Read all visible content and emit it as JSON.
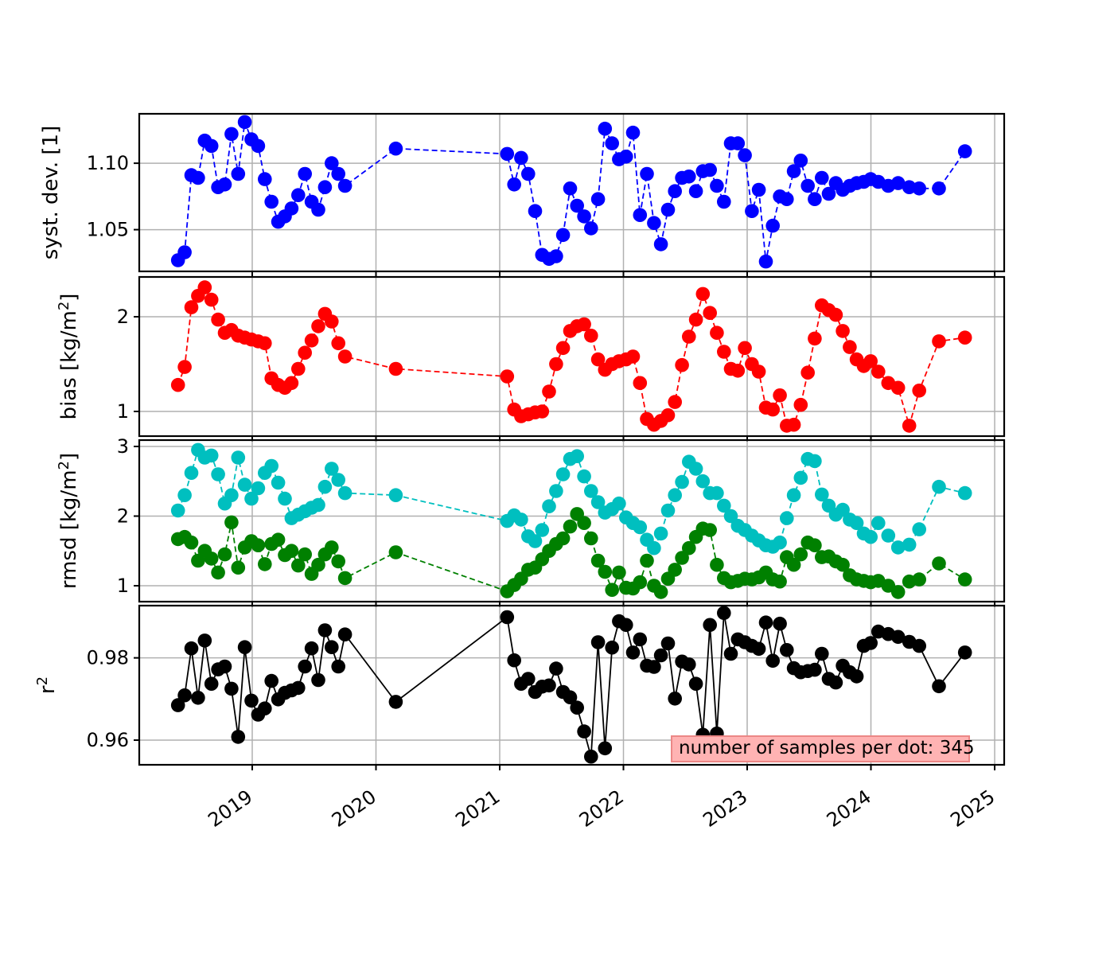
{
  "annotation_box": {
    "text": "number of samples per dot: 345",
    "fill": "#ffb3b3",
    "border_color": "#ec8786"
  },
  "chart_data": {
    "type": "line",
    "description": "Four stacked time-series panels of validation statistics (syst. dev., bias, rmsd, r2) with large dots connected by dashed/solid lines, monthly-to-3-weekly cadence 2018-2024 with a data gap between early 2020 and early 2021",
    "grid": true,
    "x_axis": {
      "range": [
        2018.087,
        2025.077
      ],
      "ticks": [
        2019,
        2020,
        2021,
        2022,
        2023,
        2024,
        2025
      ],
      "tick_labels": [
        "2019",
        "2020",
        "2021",
        "2022",
        "2023",
        "2024",
        "2025"
      ]
    },
    "x": [
      2018.4,
      2018.454,
      2018.508,
      2018.562,
      2018.616,
      2018.67,
      2018.724,
      2018.778,
      2018.832,
      2018.886,
      2018.94,
      2018.994,
      2019.048,
      2019.102,
      2019.156,
      2019.21,
      2019.264,
      2019.318,
      2019.372,
      2019.426,
      2019.48,
      2019.534,
      2019.588,
      2019.642,
      2019.696,
      2019.75,
      2020.16,
      2021.06,
      2021.117,
      2021.173,
      2021.23,
      2021.286,
      2021.343,
      2021.399,
      2021.456,
      2021.512,
      2021.569,
      2021.625,
      2021.682,
      2021.738,
      2021.795,
      2021.851,
      2021.908,
      2021.964,
      2022.021,
      2022.077,
      2022.134,
      2022.19,
      2022.247,
      2022.303,
      2022.36,
      2022.416,
      2022.473,
      2022.529,
      2022.586,
      2022.642,
      2022.699,
      2022.755,
      2022.812,
      2022.868,
      2022.925,
      2022.981,
      2023.038,
      2023.094,
      2023.151,
      2023.207,
      2023.264,
      2023.32,
      2023.377,
      2023.433,
      2023.49,
      2023.546,
      2023.603,
      2023.659,
      2023.716,
      2023.772,
      2023.829,
      2023.885,
      2023.942,
      2023.998,
      2024.06,
      2024.14,
      2024.22,
      2024.31,
      2024.39,
      2024.55,
      2024.76
    ],
    "panels": [
      {
        "id": "syst-dev",
        "ylabel_parts": [
          {
            "text": "syst. dev. [1]",
            "sup": false
          }
        ],
        "ylim": [
          1.0186,
          1.1372
        ],
        "yticks": [
          {
            "value": 1.05,
            "label": "1.05"
          },
          {
            "value": 1.1,
            "label": "1.10"
          }
        ],
        "series": [
          {
            "name": "syst-dev",
            "color": "#0000ff",
            "dashed": true,
            "values": [
              1.027,
              1.033,
              1.091,
              1.089,
              1.117,
              1.113,
              1.082,
              1.084,
              1.122,
              1.092,
              1.131,
              1.118,
              1.113,
              1.088,
              1.071,
              1.056,
              1.06,
              1.066,
              1.076,
              1.092,
              1.071,
              1.065,
              1.082,
              1.1,
              1.092,
              1.083,
              1.111,
              1.107,
              1.084,
              1.104,
              1.092,
              1.064,
              1.031,
              1.028,
              1.03,
              1.046,
              1.081,
              1.068,
              1.06,
              1.051,
              1.073,
              1.126,
              1.115,
              1.103,
              1.105,
              1.123,
              1.061,
              1.092,
              1.055,
              1.039,
              1.065,
              1.079,
              1.089,
              1.09,
              1.079,
              1.094,
              1.095,
              1.083,
              1.071,
              1.115,
              1.115,
              1.106,
              1.064,
              1.08,
              1.026,
              1.053,
              1.075,
              1.073,
              1.094,
              1.102,
              1.083,
              1.073,
              1.089,
              1.077,
              1.085,
              1.08,
              1.083,
              1.085,
              1.086,
              1.088,
              1.086,
              1.083,
              1.085,
              1.082,
              1.081,
              1.081,
              1.109
            ]
          }
        ]
      },
      {
        "id": "bias",
        "ylabel_parts": [
          {
            "text": "bias [kg/m",
            "sup": false
          },
          {
            "text": "2",
            "sup": true
          },
          {
            "text": "]",
            "sup": false
          }
        ],
        "ylim": [
          0.7395,
          2.4202
        ],
        "yticks": [
          {
            "value": 1,
            "label": "1"
          },
          {
            "value": 2,
            "label": "2"
          }
        ],
        "series": [
          {
            "name": "bias",
            "color": "#ff0000",
            "dashed": true,
            "values": [
              1.28,
              1.47,
              2.1,
              2.22,
              2.31,
              2.18,
              1.97,
              1.83,
              1.86,
              1.8,
              1.78,
              1.76,
              1.74,
              1.72,
              1.35,
              1.28,
              1.25,
              1.3,
              1.45,
              1.62,
              1.75,
              1.9,
              2.03,
              1.95,
              1.72,
              1.58,
              1.45,
              1.37,
              1.02,
              0.95,
              0.97,
              0.99,
              1.0,
              1.21,
              1.5,
              1.67,
              1.85,
              1.9,
              1.92,
              1.8,
              1.55,
              1.44,
              1.5,
              1.53,
              1.55,
              1.58,
              1.3,
              0.92,
              0.86,
              0.9,
              0.96,
              1.1,
              1.49,
              1.79,
              1.97,
              2.24,
              2.04,
              1.83,
              1.63,
              1.45,
              1.43,
              1.67,
              1.5,
              1.42,
              1.04,
              1.02,
              1.17,
              0.85,
              0.86,
              1.07,
              1.41,
              1.77,
              2.12,
              2.07,
              2.02,
              1.85,
              1.68,
              1.55,
              1.48,
              1.53,
              1.42,
              1.3,
              1.25,
              0.85,
              1.22,
              1.74,
              1.78
            ]
          }
        ]
      },
      {
        "id": "rmsd",
        "ylabel_parts": [
          {
            "text": "rmsd [kg/m",
            "sup": false
          },
          {
            "text": "2",
            "sup": true
          },
          {
            "text": "]",
            "sup": false
          }
        ],
        "ylim": [
          0.7714,
          3.0914
        ],
        "yticks": [
          {
            "value": 1,
            "label": "1"
          },
          {
            "value": 2,
            "label": "2"
          },
          {
            "value": 3,
            "label": "3"
          }
        ],
        "series": [
          {
            "name": "rmsd-cyan",
            "color": "#00bfbf",
            "dashed": true,
            "values": [
              2.08,
              2.3,
              2.62,
              2.95,
              2.84,
              2.87,
              2.6,
              2.18,
              2.3,
              2.84,
              2.45,
              2.25,
              2.4,
              2.62,
              2.72,
              2.48,
              2.25,
              1.97,
              2.02,
              2.07,
              2.12,
              2.16,
              2.42,
              2.68,
              2.52,
              2.33,
              2.3,
              1.93,
              2.01,
              1.95,
              1.71,
              1.64,
              1.8,
              2.14,
              2.36,
              2.6,
              2.82,
              2.86,
              2.57,
              2.36,
              2.2,
              2.05,
              2.1,
              2.18,
              1.98,
              1.9,
              1.84,
              1.66,
              1.54,
              1.75,
              2.08,
              2.3,
              2.49,
              2.78,
              2.68,
              2.5,
              2.33,
              2.33,
              2.15,
              2.0,
              1.86,
              1.8,
              1.72,
              1.65,
              1.58,
              1.56,
              1.62,
              1.97,
              2.3,
              2.55,
              2.82,
              2.79,
              2.31,
              2.15,
              2.02,
              2.09,
              1.95,
              1.9,
              1.75,
              1.7,
              1.9,
              1.72,
              1.55,
              1.59,
              1.81,
              2.42,
              2.33
            ]
          },
          {
            "name": "rmsd-green",
            "color": "#008000",
            "dashed": true,
            "values": [
              1.67,
              1.7,
              1.62,
              1.36,
              1.5,
              1.39,
              1.19,
              1.45,
              1.91,
              1.26,
              1.55,
              1.64,
              1.58,
              1.31,
              1.6,
              1.66,
              1.44,
              1.5,
              1.29,
              1.45,
              1.17,
              1.3,
              1.45,
              1.55,
              1.35,
              1.11,
              1.48,
              0.92,
              1.01,
              1.1,
              1.23,
              1.26,
              1.38,
              1.5,
              1.6,
              1.68,
              1.85,
              2.03,
              1.9,
              1.68,
              1.36,
              1.2,
              0.94,
              1.19,
              0.97,
              0.96,
              1.05,
              1.36,
              1.0,
              0.91,
              1.1,
              1.23,
              1.4,
              1.54,
              1.7,
              1.82,
              1.8,
              1.3,
              1.11,
              1.05,
              1.07,
              1.1,
              1.09,
              1.12,
              1.19,
              1.09,
              1.06,
              1.41,
              1.3,
              1.45,
              1.62,
              1.58,
              1.41,
              1.42,
              1.35,
              1.3,
              1.15,
              1.09,
              1.07,
              1.05,
              1.07,
              1.0,
              0.91,
              1.06,
              1.09,
              1.32,
              1.09
            ]
          }
        ]
      },
      {
        "id": "r2",
        "ylabel_parts": [
          {
            "text": "r",
            "sup": false
          },
          {
            "text": "2",
            "sup": true
          }
        ],
        "ylim": [
          0.954,
          0.9927
        ],
        "yticks": [
          {
            "value": 0.96,
            "label": "0.96"
          },
          {
            "value": 0.98,
            "label": "0.98"
          }
        ],
        "series": [
          {
            "name": "r2",
            "color": "#000000",
            "dashed": false,
            "values": [
              0.9685,
              0.9709,
              0.9823,
              0.9703,
              0.9842,
              0.9737,
              0.9772,
              0.9779,
              0.9725,
              0.9608,
              0.9826,
              0.9696,
              0.9662,
              0.9677,
              0.9744,
              0.9699,
              0.9715,
              0.9721,
              0.9727,
              0.9779,
              0.9823,
              0.9746,
              0.9867,
              0.9826,
              0.9779,
              0.9857,
              0.9693,
              0.9899,
              0.9794,
              0.9737,
              0.9749,
              0.9717,
              0.973,
              0.9733,
              0.9774,
              0.9717,
              0.9704,
              0.9679,
              0.9621,
              0.956,
              0.9838,
              0.958,
              0.9825,
              0.9889,
              0.988,
              0.9813,
              0.9845,
              0.9781,
              0.9778,
              0.9806,
              0.9835,
              0.9701,
              0.9791,
              0.9784,
              0.9737,
              0.9613,
              0.988,
              0.9616,
              0.9909,
              0.981,
              0.9845,
              0.9838,
              0.9829,
              0.9822,
              0.9886,
              0.9793,
              0.9883,
              0.9819,
              0.9775,
              0.9765,
              0.9768,
              0.9771,
              0.981,
              0.9749,
              0.974,
              0.9781,
              0.9765,
              0.9755,
              0.9829,
              0.9836,
              0.9864,
              0.9858,
              0.9851,
              0.9839,
              0.9829,
              0.9731,
              0.9813
            ]
          }
        ]
      }
    ],
    "annotation": "number of samples per dot: 345",
    "legend_position": "lower right of r2 panel",
    "marker": "circle",
    "styles": {
      "grid_color": "#b0b0b0",
      "axis_color": "#000000"
    }
  }
}
